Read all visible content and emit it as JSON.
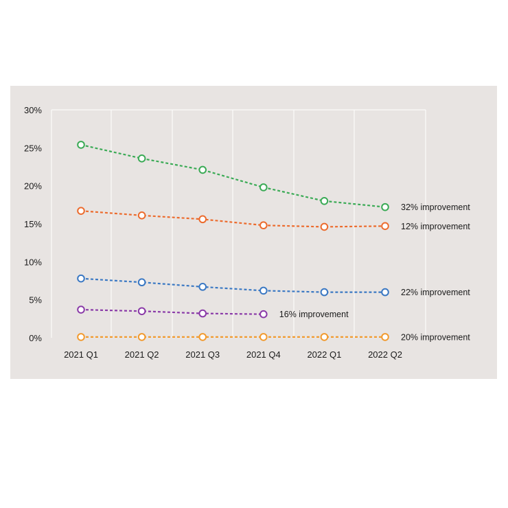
{
  "chart_data": {
    "type": "line",
    "title": "",
    "xlabel": "",
    "ylabel": "",
    "categories": [
      "2021 Q1",
      "2021 Q2",
      "2021 Q3",
      "2021 Q4",
      "2022 Q1",
      "2022 Q2"
    ],
    "ylim": [
      0,
      30
    ],
    "yticks": [
      "0%",
      "5%",
      "10%",
      "15%",
      "20%",
      "25%",
      "30%"
    ],
    "y_tick_values": [
      0,
      5,
      10,
      15,
      20,
      25,
      30
    ],
    "grid": "vertical",
    "legend": "none",
    "series": [
      {
        "color": "#3aaa55",
        "values": [
          25.4,
          23.6,
          22.1,
          19.8,
          18.0,
          17.2
        ],
        "annotation": "32% improvement"
      },
      {
        "color": "#ec6b2d",
        "values": [
          16.7,
          16.1,
          15.6,
          14.8,
          14.6,
          14.7
        ],
        "annotation": "12% improvement"
      },
      {
        "color": "#3a78c3",
        "values": [
          7.8,
          7.3,
          6.7,
          6.2,
          6.0,
          6.0
        ],
        "annotation": "22% improvement"
      },
      {
        "color": "#8a3aa8",
        "values": [
          3.7,
          3.5,
          3.2,
          3.1,
          null,
          null
        ],
        "annotation": "16% improvement"
      },
      {
        "color": "#f29a2e",
        "values": [
          0.1,
          0.1,
          0.1,
          0.1,
          0.1,
          0.1
        ],
        "annotation": "20% improvement"
      }
    ]
  }
}
